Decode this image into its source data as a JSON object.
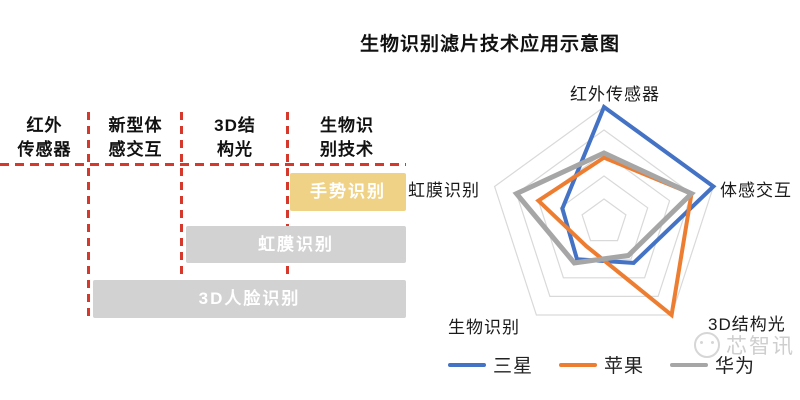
{
  "title": "生物识别滤片技术应用示意图",
  "timeline": {
    "columns": [
      {
        "label": "红外\n传感器"
      },
      {
        "label": "新型体\n感交互"
      },
      {
        "label": "3D结\n构光"
      },
      {
        "label": "生物识\n别技术"
      }
    ],
    "bars": [
      {
        "label": "手势识别",
        "color": "#f0d287"
      },
      {
        "label": "虹膜识别",
        "color": "#d2d2d2"
      },
      {
        "label": "3D人脸识别",
        "color": "#d2d2d2"
      }
    ],
    "divider_color": "#d6392c"
  },
  "chart_data": {
    "type": "radar",
    "title": "生物识别滤片技术应用示意图",
    "axes": [
      "红外传感器",
      "体感交互",
      "3D结构光",
      "生物识别",
      "虹膜识别"
    ],
    "levels": 5,
    "max": 5,
    "grid": true,
    "grid_color": "#d9d9d9",
    "legend_position": "bottom",
    "series": [
      {
        "name": "三星",
        "color": "#4472c4",
        "values": [
          5,
          5,
          2.2,
          2,
          1.9
        ]
      },
      {
        "name": "苹果",
        "color": "#ed7d31",
        "values": [
          2.8,
          4,
          5,
          1.3,
          3
        ]
      },
      {
        "name": "华为",
        "color": "#a6a6a6",
        "values": [
          3,
          4,
          1.8,
          2.2,
          4
        ]
      }
    ]
  },
  "watermark": {
    "text": "芯智讯"
  }
}
